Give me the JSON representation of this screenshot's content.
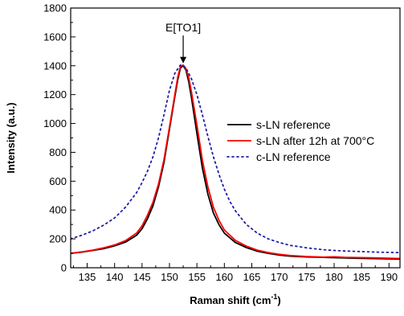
{
  "chart_data": {
    "type": "line",
    "title": "",
    "xlabel": "Raman shift (cm",
    "xlabel_sup": "-1",
    "xlabel_suffix": ")",
    "ylabel": "Intensity (a.u.)",
    "xlim": [
      132,
      192
    ],
    "ylim": [
      0,
      1800
    ],
    "x_ticks": [
      135,
      140,
      145,
      150,
      155,
      160,
      165,
      170,
      175,
      180,
      185,
      190
    ],
    "y_ticks": [
      0,
      200,
      400,
      600,
      800,
      1000,
      1200,
      1400,
      1600,
      1800
    ],
    "grid": false,
    "legend_position": "right",
    "annotation": {
      "text": "E[TO1]",
      "x": 152.5,
      "y": 1400,
      "label_y": 1660
    },
    "series": [
      {
        "name": "s-LN reference",
        "color": "#000000",
        "dash": "solid",
        "x": [
          132,
          134,
          136,
          138,
          140,
          142,
          144,
          145,
          146,
          147,
          148,
          149,
          150,
          151,
          151.5,
          152,
          152.5,
          153,
          153.5,
          154,
          155,
          156,
          157,
          158,
          159,
          160,
          162,
          164,
          166,
          168,
          170,
          172,
          175,
          178,
          180,
          182,
          185,
          188,
          192
        ],
        "y": [
          100,
          108,
          120,
          132,
          152,
          178,
          225,
          270,
          340,
          430,
          560,
          730,
          960,
          1190,
          1300,
          1385,
          1400,
          1370,
          1290,
          1180,
          930,
          690,
          510,
          380,
          300,
          240,
          175,
          140,
          115,
          100,
          88,
          80,
          75,
          72,
          70,
          68,
          65,
          63,
          60
        ]
      },
      {
        "name": "s-LN after 12h at 700°C",
        "color": "#ff0000",
        "dash": "solid",
        "x": [
          132,
          134,
          136,
          138,
          140,
          142,
          144,
          145,
          146,
          147,
          148,
          149,
          150,
          151,
          151.5,
          152,
          152.5,
          153,
          153.5,
          154,
          155,
          156,
          157,
          158,
          159,
          160,
          162,
          164,
          166,
          168,
          170,
          172,
          175,
          178,
          180,
          182,
          185,
          188,
          192
        ],
        "y": [
          100,
          110,
          122,
          138,
          158,
          188,
          240,
          290,
          365,
          455,
          580,
          750,
          975,
          1205,
          1320,
          1395,
          1405,
          1380,
          1320,
          1220,
          990,
          745,
          560,
          420,
          330,
          262,
          190,
          150,
          122,
          105,
          93,
          85,
          78,
          74,
          76,
          72,
          70,
          68,
          64
        ]
      },
      {
        "name": "c-LN reference",
        "color": "#1f1fa8",
        "dash": "dotted",
        "x": [
          132,
          134,
          136,
          138,
          140,
          142,
          144,
          145,
          146,
          147,
          148,
          149,
          150,
          151,
          152,
          152.5,
          153,
          154,
          155,
          156,
          157,
          158,
          159,
          160,
          161,
          162,
          164,
          166,
          168,
          170,
          172,
          175,
          178,
          180,
          182,
          185,
          188,
          192
        ],
        "y": [
          200,
          225,
          255,
          295,
          345,
          420,
          520,
          590,
          670,
          770,
          900,
          1060,
          1230,
          1350,
          1405,
          1400,
          1385,
          1310,
          1200,
          1060,
          910,
          770,
          650,
          545,
          460,
          395,
          300,
          240,
          200,
          175,
          155,
          138,
          125,
          120,
          116,
          112,
          108,
          105
        ]
      }
    ]
  }
}
